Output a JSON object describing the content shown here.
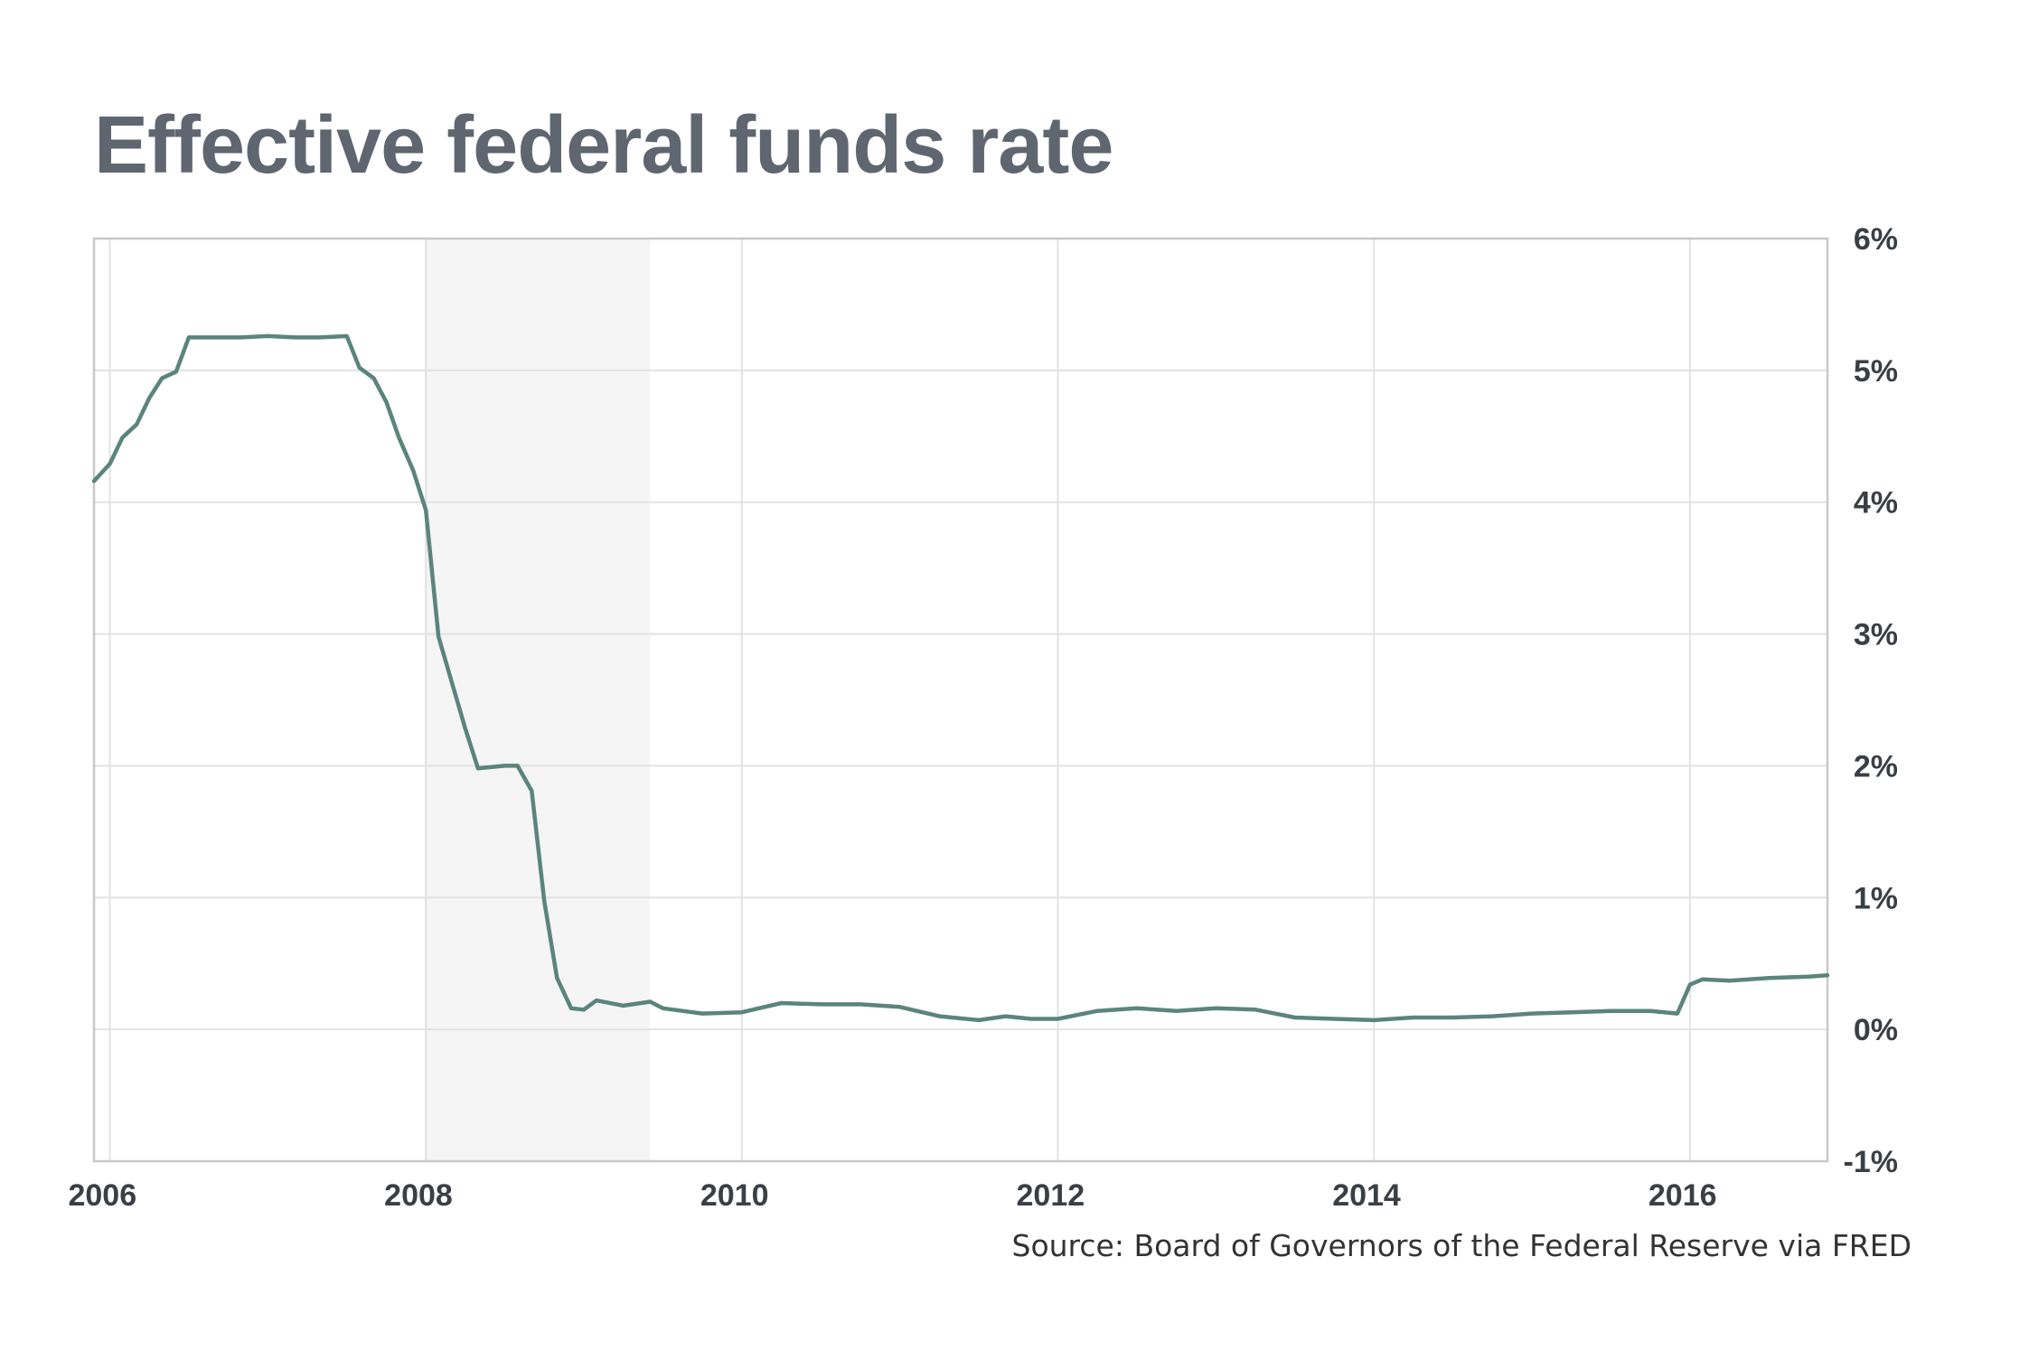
{
  "chart_data": {
    "type": "line",
    "title": "Effective federal funds rate",
    "source": "Source: Board of Governors of the Federal Reserve via FRED",
    "xlim": [
      2005.9,
      2016.87
    ],
    "ylim": [
      -1,
      6
    ],
    "x_ticks": [
      2006,
      2008,
      2010,
      2012,
      2014,
      2016
    ],
    "x_tick_labels": [
      "2006",
      "2008",
      "2010",
      "2012",
      "2014",
      "2016"
    ],
    "y_ticks": [
      -1,
      0,
      1,
      2,
      3,
      4,
      5,
      6
    ],
    "y_tick_labels": [
      "-1%",
      "0%",
      "1%",
      "2%",
      "3%",
      "4%",
      "5%",
      "6%"
    ],
    "y_axis_position": "right",
    "grid": true,
    "recession_band": [
      2008.0,
      2009.42
    ],
    "colors": {
      "line": "#5b847c",
      "recession": "#f5f5f5",
      "grid": "#e2e2e2",
      "frame": "#c8c8c8"
    },
    "series": [
      {
        "x": [
          2005.9,
          2006.0,
          2006.08,
          2006.17,
          2006.25,
          2006.33,
          2006.42,
          2006.5,
          2006.67,
          2006.83,
          2007.0,
          2007.17,
          2007.33,
          2007.5,
          2007.58,
          2007.67,
          2007.75,
          2007.83,
          2007.92,
          2008.0,
          2008.08,
          2008.17,
          2008.25,
          2008.33,
          2008.5,
          2008.58,
          2008.67,
          2008.75,
          2008.83,
          2008.92,
          2009.0,
          2009.08,
          2009.25,
          2009.42,
          2009.5,
          2009.75,
          2010.0,
          2010.25,
          2010.5,
          2010.75,
          2011.0,
          2011.25,
          2011.5,
          2011.67,
          2011.83,
          2012.0,
          2012.25,
          2012.5,
          2012.75,
          2013.0,
          2013.25,
          2013.5,
          2013.75,
          2014.0,
          2014.25,
          2014.5,
          2014.75,
          2015.0,
          2015.25,
          2015.5,
          2015.75,
          2015.92,
          2016.0,
          2016.08,
          2016.25,
          2016.5,
          2016.75,
          2016.87
        ],
        "y": [
          4.16,
          4.29,
          4.49,
          4.59,
          4.79,
          4.94,
          4.99,
          5.25,
          5.25,
          5.25,
          5.26,
          5.25,
          5.25,
          5.26,
          5.02,
          4.94,
          4.76,
          4.49,
          4.24,
          3.94,
          2.98,
          2.61,
          2.28,
          1.98,
          2.0,
          2.0,
          1.81,
          0.97,
          0.39,
          0.16,
          0.15,
          0.22,
          0.18,
          0.21,
          0.16,
          0.12,
          0.13,
          0.2,
          0.19,
          0.19,
          0.17,
          0.1,
          0.07,
          0.1,
          0.08,
          0.08,
          0.14,
          0.16,
          0.14,
          0.16,
          0.15,
          0.09,
          0.08,
          0.07,
          0.09,
          0.09,
          0.1,
          0.12,
          0.13,
          0.14,
          0.14,
          0.12,
          0.34,
          0.38,
          0.37,
          0.39,
          0.4,
          0.41
        ]
      }
    ]
  }
}
